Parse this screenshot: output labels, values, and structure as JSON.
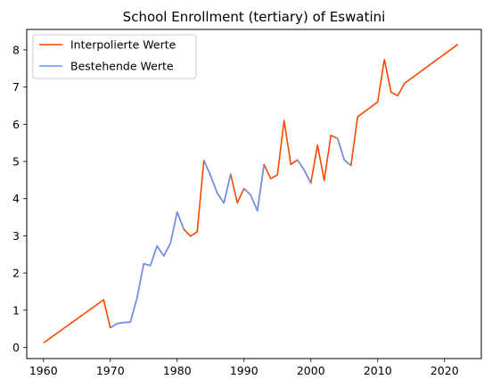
{
  "chart_data": {
    "type": "line",
    "title": "School Enrollment (tertiary) of Eswatini",
    "xlabel": "",
    "ylabel": "",
    "xlim": [
      1957.5,
      2025.5
    ],
    "ylim": [
      -0.3,
      8.55
    ],
    "x_ticks": [
      1960,
      1970,
      1980,
      1990,
      2000,
      2010,
      2020,
      2030
    ],
    "y_ticks": [
      0,
      1,
      2,
      3,
      4,
      5,
      6,
      7,
      8
    ],
    "grid": false,
    "legend_position": "top-left",
    "series": [
      {
        "name": "Interpolierte Werte",
        "color": "#ff4500",
        "points": [
          [
            1960,
            0.12
          ],
          [
            1969,
            1.28
          ],
          [
            1970,
            0.53
          ],
          [
            1971,
            0.64
          ],
          [
            1972,
            0.67
          ],
          [
            1973,
            0.68
          ],
          [
            1974,
            1.33
          ],
          [
            1975,
            2.25
          ],
          [
            1976,
            2.2
          ],
          [
            1977,
            2.73
          ],
          [
            1978,
            2.46
          ],
          [
            1979,
            2.8
          ],
          [
            1980,
            3.64
          ],
          [
            1981,
            3.18
          ],
          [
            1982,
            2.99
          ],
          [
            1983,
            3.11
          ],
          [
            1984,
            5.03
          ],
          [
            1985,
            4.62
          ],
          [
            1986,
            4.15
          ],
          [
            1987,
            3.88
          ],
          [
            1988,
            4.66
          ],
          [
            1989,
            3.89
          ],
          [
            1990,
            4.27
          ],
          [
            1991,
            4.1
          ],
          [
            1992,
            3.67
          ],
          [
            1993,
            4.92
          ],
          [
            1994,
            4.54
          ],
          [
            1995,
            4.64
          ],
          [
            1996,
            6.1
          ],
          [
            1997,
            4.92
          ],
          [
            1998,
            5.04
          ],
          [
            1999,
            4.77
          ],
          [
            2000,
            4.42
          ],
          [
            2001,
            5.44
          ],
          [
            2002,
            4.49
          ],
          [
            2003,
            5.7
          ],
          [
            2004,
            5.62
          ],
          [
            2005,
            5.04
          ],
          [
            2006,
            4.89
          ],
          [
            2007,
            6.2
          ],
          [
            2010,
            6.6
          ],
          [
            2011,
            7.74
          ],
          [
            2012,
            6.86
          ],
          [
            2013,
            6.77
          ],
          [
            2014,
            7.1
          ],
          [
            2022,
            8.15
          ]
        ]
      },
      {
        "name": "Bestehende Werte",
        "color": "#6495ed",
        "segments": [
          [
            [
              1970,
              0.53
            ],
            [
              1971,
              0.64
            ],
            [
              1972,
              0.67
            ],
            [
              1973,
              0.68
            ],
            [
              1974,
              1.33
            ],
            [
              1975,
              2.25
            ],
            [
              1976,
              2.2
            ],
            [
              1977,
              2.73
            ],
            [
              1978,
              2.46
            ],
            [
              1979,
              2.8
            ],
            [
              1980,
              3.64
            ],
            [
              1981,
              3.18
            ]
          ],
          [
            [
              1984,
              5.03
            ],
            [
              1985,
              4.62
            ],
            [
              1986,
              4.15
            ],
            [
              1987,
              3.88
            ],
            [
              1988,
              4.66
            ]
          ],
          [
            [
              1990,
              4.27
            ],
            [
              1991,
              4.1
            ],
            [
              1992,
              3.67
            ],
            [
              1993,
              4.92
            ]
          ],
          [
            [
              1998,
              5.04
            ],
            [
              1999,
              4.77
            ],
            [
              2000,
              4.42
            ]
          ],
          [
            [
              2004,
              5.62
            ],
            [
              2005,
              5.04
            ],
            [
              2006,
              4.89
            ]
          ]
        ]
      }
    ]
  }
}
